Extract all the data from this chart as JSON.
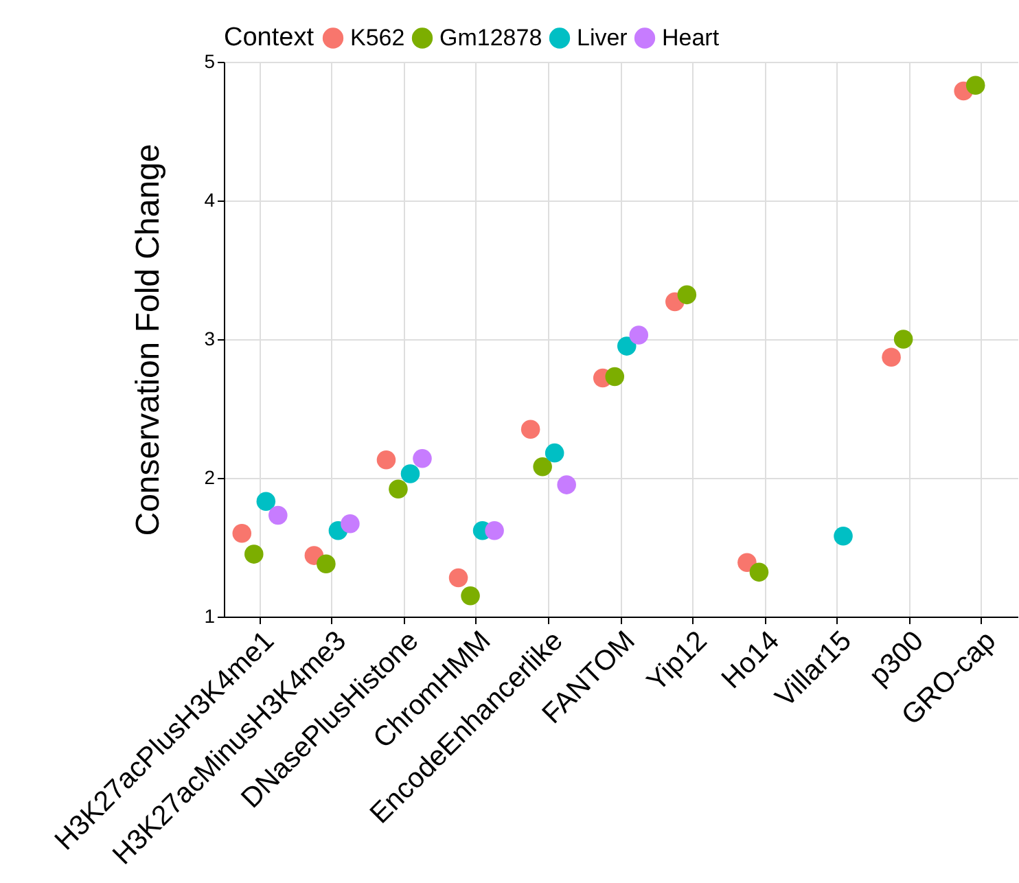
{
  "chart_data": {
    "type": "scatter",
    "ylabel": "Conservation Fold Change",
    "legend_title": "Context",
    "legend": "top",
    "grid": true,
    "marker": "circle",
    "categories": [
      "H3K27acPlusH3K4me1",
      "H3K27acMinusH3K4me3",
      "DNasePlusHistone",
      "ChromHMM",
      "EncodeEnhancerlike",
      "FANTOM",
      "Yip12",
      "Ho14",
      "Villar15",
      "p300",
      "GRO-cap"
    ],
    "ylim": [
      1,
      5
    ],
    "yticks": [
      1,
      2,
      3,
      4,
      5
    ],
    "series": [
      {
        "name": "K562",
        "color": "#f8766d",
        "values": [
          1.6,
          1.44,
          2.13,
          1.28,
          2.35,
          2.72,
          3.27,
          1.39,
          null,
          2.87,
          4.79
        ]
      },
      {
        "name": "Gm12878",
        "color": "#7cae00",
        "values": [
          1.45,
          1.38,
          1.92,
          1.15,
          2.08,
          2.73,
          3.32,
          1.32,
          null,
          3.0,
          4.83
        ]
      },
      {
        "name": "Liver",
        "color": "#00bfc4",
        "values": [
          1.83,
          1.62,
          2.03,
          1.62,
          2.18,
          2.95,
          null,
          null,
          1.58,
          null,
          null
        ]
      },
      {
        "name": "Heart",
        "color": "#c77cff",
        "values": [
          1.73,
          1.67,
          2.14,
          1.62,
          1.95,
          3.03,
          null,
          null,
          null,
          null,
          null
        ]
      }
    ]
  }
}
